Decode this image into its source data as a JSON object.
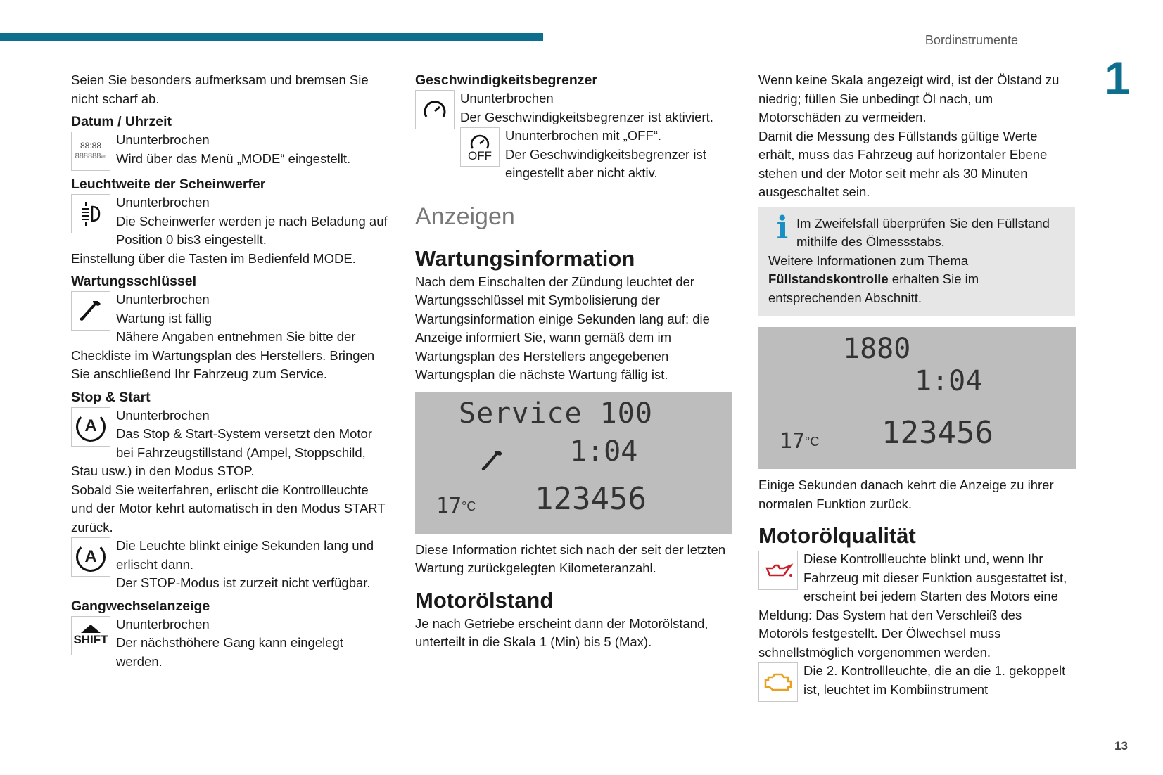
{
  "header": {
    "section": "Bordinstrumente",
    "chapter": "1",
    "page": "13",
    "accent": "#0d6e8e"
  },
  "col1": {
    "intro": "Seien Sie besonders aufmerksam und bremsen Sie nicht scharf ab.",
    "datum": {
      "title": "Datum / Uhrzeit",
      "icon": "clock-display-icon",
      "icon_text1": "88:88",
      "icon_text2": "888888",
      "icon_unit": "km",
      "l1": "Ununterbrochen",
      "l2": "Wird über das Menü „MODE“ eingestellt."
    },
    "leucht": {
      "title": "Leuchtweite der Scheinwerfer",
      "icon": "headlamp-leveling-icon",
      "l1": "Ununterbrochen",
      "l2": "Die Scheinwerfer werden je nach Beladung auf Position 0 bis3 eingestellt.",
      "l3": "Einstellung über die Tasten im Bedienfeld MODE."
    },
    "wart": {
      "title": "Wartungsschlüssel",
      "icon": "wrench-icon",
      "l1": "Ununterbrochen",
      "l2": "Wartung ist fällig",
      "l3": "Nähere Angaben entnehmen Sie bitte der Checkliste im Wartungsplan des Herstellers. Bringen Sie anschließend Ihr Fahrzeug zum Service."
    },
    "stop": {
      "title": "Stop & Start",
      "icon": "stop-start-icon",
      "icon_text": "A",
      "l1": "Ununterbrochen",
      "l2": "Das Stop & Start-System versetzt den Motor bei Fahrzeugstillstand (Ampel, Stoppschild, Stau usw.) in den Modus STOP.",
      "l3": "Sobald Sie weiterfahren, erlischt die Kontrollleuchte und der Motor kehrt automatisch in den Modus START zurück.",
      "l4": "Die Leuchte blinkt einige Sekunden lang und erlischt dann.",
      "l5": "Der STOP-Modus ist zurzeit nicht verfügbar."
    },
    "gang": {
      "title": "Gangwechselanzeige",
      "icon": "shift-up-icon",
      "icon_text": "SHIFT",
      "l1": "Ununterbrochen",
      "l2": "Der nächsthöhere Gang kann eingelegt werden."
    }
  },
  "col2": {
    "begr": {
      "title": "Geschwindigkeitsbegrenzer",
      "icon": "speed-limiter-icon",
      "l1": "Ununterbrochen",
      "l2": "Der Geschwindigkeitsbegrenzer ist aktiviert.",
      "icon2_text": "OFF",
      "l3": "Ununterbrochen mit „OFF“.",
      "l4": "Der Geschwindigkeitsbegrenzer ist eingestellt aber nicht aktiv."
    },
    "anzeigen": "Anzeigen",
    "wi": {
      "title": "Wartungsinformation",
      "p": "Nach dem Einschalten der Zündung leuchtet der Wartungsschlüssel mit Symbolisierung der Wartungsinformation einige Sekunden lang auf: die Anzeige informiert Sie, wann gemäß dem im Wartungsplan des Herstellers angegebenen Wartungsplan die nächste Wartung fällig ist.",
      "lcd": {
        "line1": "Service 100",
        "time": "1:04",
        "temp": "17",
        "unit": "°C",
        "odo": "123456"
      },
      "p2": "Diese Information richtet sich nach der seit der letzten Wartung zurückgelegten Kilometeranzahl."
    },
    "mos": {
      "title": "Motorölstand",
      "p": "Je nach Getriebe erscheint dann der Motorölstand, unterteilt in die Skala 1 (Min) bis 5 (Max)."
    }
  },
  "col3": {
    "p1": "Wenn keine Skala angezeigt wird, ist der Ölstand zu niedrig; füllen Sie unbedingt Öl nach, um Motorschäden zu vermeiden.",
    "p2": "Damit die Messung des Füllstands gültige Werte erhält, muss das Fahrzeug auf horizontaler Ebene stehen und der Motor seit mehr als 30 Minuten ausgeschaltet sein.",
    "info": {
      "icon": "info-icon",
      "l1": "Im Zweifelsfall überprüfen Sie den Füllstand mithilfe des Ölmessstabs.",
      "l2a": "Weitere Informationen zum Thema ",
      "l2b": "Füllstandskontrolle",
      "l2c": " erhalten Sie im entsprechenden Abschnitt."
    },
    "lcd": {
      "line1": "1880",
      "time": "1:04",
      "temp": "17",
      "unit": "°C",
      "odo": "123456"
    },
    "p3": "Einige Sekunden danach kehrt die Anzeige zu ihrer normalen Funktion zurück.",
    "moq": {
      "title": "Motorölqualität",
      "icon": "oil-can-icon",
      "icon_color": "#c8202a",
      "l1": "Diese Kontrollleuchte blinkt und, wenn Ihr Fahrzeug mit dieser Funktion ausgestattet ist, erscheint bei jedem Starten des Motors eine Meldung: Das System hat den Verschleiß des Motoröls festgestellt. Der Ölwechsel muss schnellstmöglich vorgenommen werden.",
      "icon2": "engine-check-icon",
      "icon2_color": "#e8a020",
      "l2": "Die 2. Kontrollleuchte, die an die 1. gekoppelt ist, leuchtet im Kombiinstrument"
    }
  }
}
